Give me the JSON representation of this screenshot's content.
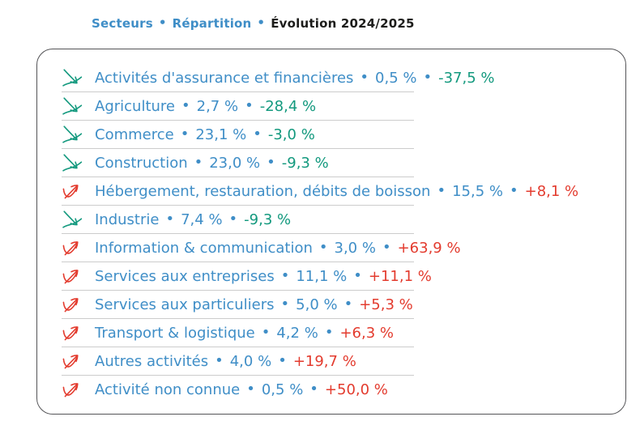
{
  "colors": {
    "accent_blue": "#3f8ec7",
    "negative_teal": "#13997e",
    "positive_red": "#e33b2e",
    "dark_text": "#1d1d1b",
    "panel_border": "#545457",
    "row_divider": "#cccccc"
  },
  "header": {
    "separator": "•",
    "items": [
      {
        "label": "Secteurs",
        "style": "accent"
      },
      {
        "label": "Répartition",
        "style": "accent"
      },
      {
        "label": "Évolution 2024/2025",
        "style": "dark"
      }
    ]
  },
  "icons": {
    "down": "trend-down-arrow-icon",
    "up": "trend-up-arrow-icon"
  },
  "panel": {
    "separator": "•",
    "rows": [
      {
        "sector": "Activités d'assurance et financières",
        "share": "0,5 %",
        "evolution": "-37,5 %",
        "trend": "down"
      },
      {
        "sector": "Agriculture",
        "share": "2,7 %",
        "evolution": "-28,4 %",
        "trend": "down"
      },
      {
        "sector": "Commerce",
        "share": "23,1 %",
        "evolution": "-3,0 %",
        "trend": "down"
      },
      {
        "sector": "Construction",
        "share": "23,0 %",
        "evolution": "-9,3 %",
        "trend": "down"
      },
      {
        "sector": "Hébergement, restauration, débits de boisson",
        "share": "15,5 %",
        "evolution": "+8,1 %",
        "trend": "up"
      },
      {
        "sector": "Industrie",
        "share": "7,4 %",
        "evolution": "-9,3 %",
        "trend": "down"
      },
      {
        "sector": "Information & communication",
        "share": "3,0 %",
        "evolution": "+63,9 %",
        "trend": "up"
      },
      {
        "sector": "Services aux entreprises",
        "share": "11,1 %",
        "evolution": "+11,1 %",
        "trend": "up"
      },
      {
        "sector": "Services aux particuliers",
        "share": "5,0 %",
        "evolution": "+5,3 %",
        "trend": "up"
      },
      {
        "sector": "Transport & logistique",
        "share": "4,2 %",
        "evolution": "+6,3 %",
        "trend": "up"
      },
      {
        "sector": "Autres activités",
        "share": "4,0 %",
        "evolution": "+19,7 %",
        "trend": "up"
      },
      {
        "sector": "Activité non connue",
        "share": "0,5 %",
        "evolution": "+50,0 %",
        "trend": "up"
      }
    ]
  },
  "chart_data": {
    "type": "table",
    "title": "Secteurs • Répartition • Évolution 2024/2025",
    "columns": [
      "Secteur",
      "Répartition (%)",
      "Évolution 2024/2025 (%)"
    ],
    "rows": [
      [
        "Activités d'assurance et financières",
        0.5,
        -37.5
      ],
      [
        "Agriculture",
        2.7,
        -28.4
      ],
      [
        "Commerce",
        23.1,
        -3.0
      ],
      [
        "Construction",
        23.0,
        -9.3
      ],
      [
        "Hébergement, restauration, débits de boisson",
        15.5,
        8.1
      ],
      [
        "Industrie",
        7.4,
        -9.3
      ],
      [
        "Information & communication",
        3.0,
        63.9
      ],
      [
        "Services aux entreprises",
        11.1,
        11.1
      ],
      [
        "Services aux particuliers",
        5.0,
        5.3
      ],
      [
        "Transport & logistique",
        4.2,
        6.3
      ],
      [
        "Autres activités",
        4.0,
        19.7
      ],
      [
        "Activité non connue",
        0.5,
        50.0
      ]
    ],
    "legend_note": "teal down-arrow = decrease, red up-arrow = increase"
  }
}
